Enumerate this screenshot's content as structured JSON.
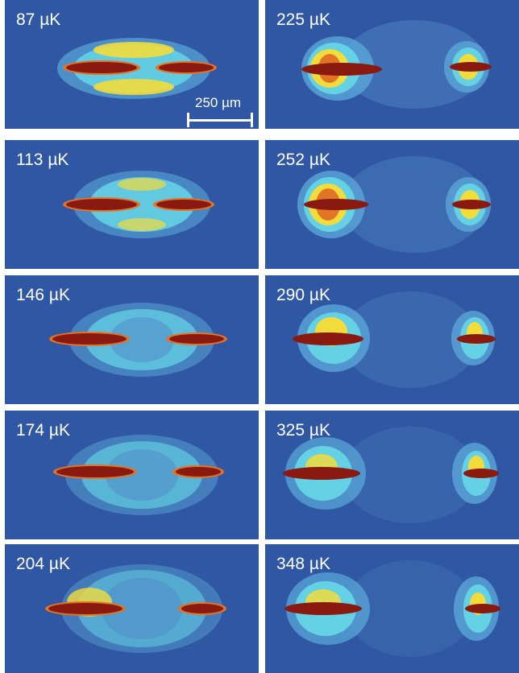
{
  "figure": {
    "panels": [
      {
        "temperature": "87 µK",
        "column": "left",
        "row": 1
      },
      {
        "temperature": "225 µK",
        "column": "right",
        "row": 1
      },
      {
        "temperature": "113 µK",
        "column": "left",
        "row": 2
      },
      {
        "temperature": "252 µK",
        "column": "right",
        "row": 2
      },
      {
        "temperature": "146 µK",
        "column": "left",
        "row": 3
      },
      {
        "temperature": "290 µK",
        "column": "right",
        "row": 3
      },
      {
        "temperature": "174 µK",
        "column": "left",
        "row": 4
      },
      {
        "temperature": "325 µK",
        "column": "right",
        "row": 4
      },
      {
        "temperature": "204 µK",
        "column": "left",
        "row": 5
      },
      {
        "temperature": "348 µK",
        "column": "right",
        "row": 5
      }
    ],
    "scale_bar": {
      "label": "250 µm"
    }
  },
  "colors": {
    "background": "#2f57a3",
    "halo_blue": "#5aa6d8",
    "cyan": "#64d2e4",
    "yellow": "#f2dc3c",
    "orange": "#e27426",
    "red_core": "#8a1a10"
  }
}
